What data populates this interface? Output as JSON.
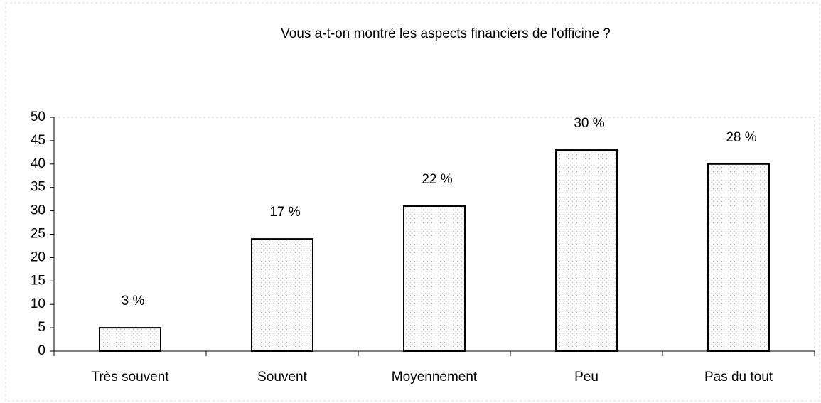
{
  "chart_data": {
    "type": "bar",
    "title": "Vous a-t-on montré les aspects financiers de l'officine ?",
    "categories": [
      "Très souvent",
      "Souvent",
      "Moyennement",
      "Peu",
      "Pas du tout"
    ],
    "values": [
      5,
      24,
      31,
      43,
      40
    ],
    "annotations": [
      "3 %",
      "17 %",
      "22 %",
      "30 %",
      "28 %"
    ],
    "color": "#f2f2f2",
    "ylim": [
      0,
      50
    ],
    "yticks": [
      0,
      5,
      10,
      15,
      20,
      25,
      30,
      35,
      40,
      45,
      50
    ]
  }
}
